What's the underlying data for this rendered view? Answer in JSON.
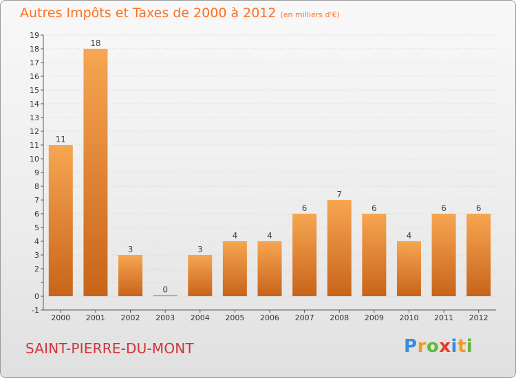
{
  "title": "Autres Impôts et Taxes de 2000 à 2012",
  "subtitle": "(en milliers d'€)",
  "town": "SAINT-PIERRE-DU-MONT",
  "brand": {
    "letters": [
      {
        "ch": "P",
        "color": "#3a8be0"
      },
      {
        "ch": "r",
        "color": "#f39a1e"
      },
      {
        "ch": "o",
        "color": "#63b83a"
      },
      {
        "ch": "x",
        "color": "#e63b2a"
      },
      {
        "ch": "i",
        "color": "#3a8be0"
      },
      {
        "ch": "t",
        "color": "#f39a1e"
      },
      {
        "ch": "i",
        "color": "#63b83a"
      }
    ]
  },
  "colors": {
    "bar_top": "#f7a652",
    "bar_bottom": "#c8641a",
    "title": "#ff6f1e",
    "town": "#d2323a",
    "grid": "#cccccc"
  },
  "chart_data": {
    "type": "bar",
    "title": "Autres Impôts et Taxes de 2000 à 2012",
    "subtitle": "(en milliers d'€)",
    "categories": [
      "2000",
      "2001",
      "2002",
      "2003",
      "2004",
      "2005",
      "2006",
      "2007",
      "2008",
      "2009",
      "2010",
      "2011",
      "2012"
    ],
    "values": [
      11,
      18,
      3,
      0,
      3,
      4,
      4,
      6,
      7,
      6,
      4,
      6,
      6
    ],
    "data_labels": [
      "11",
      "18",
      "3",
      "0",
      "3",
      "4",
      "4",
      "6",
      "7",
      "6",
      "4",
      "6",
      "6"
    ],
    "ylim": [
      -1,
      19
    ],
    "yticks": [
      -1,
      0,
      1,
      2,
      3,
      4,
      5,
      6,
      7,
      8,
      9,
      10,
      11,
      12,
      13,
      14,
      15,
      16,
      17,
      18,
      19
    ],
    "ytick_labels": [
      "-1",
      "0",
      "",
      "2",
      "3",
      "4",
      "5",
      "6",
      "7",
      "8",
      "9",
      "10",
      "11",
      "12",
      "13",
      "14",
      "15",
      "16",
      "17",
      "18",
      "19"
    ],
    "xlabel": "",
    "ylabel": "",
    "grid": "horizontal"
  }
}
